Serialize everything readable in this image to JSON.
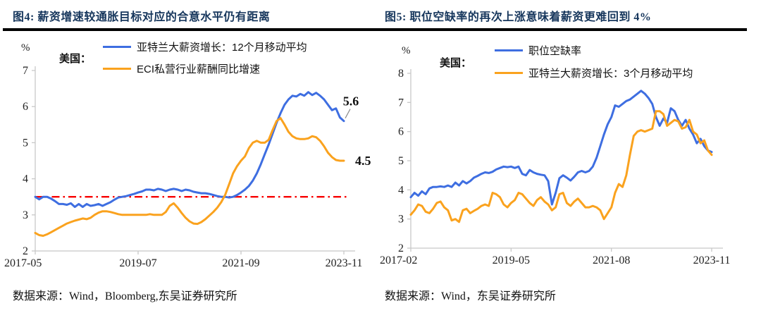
{
  "colors": {
    "blue": "#3E6EE1",
    "orange": "#FAA21E",
    "red": "#F80000",
    "title_navy": "#16365C",
    "axis_gray": "#C8C8C8",
    "tick_text": "#222222",
    "annotation_text": "#111111",
    "leader_gray": "#8A8A8A"
  },
  "charts": [
    {
      "title": "图4: 薪资增速较通胀目标对应的合意水平仍有距离",
      "source": "数据来源：Wind，Bloomberg,东吴证券研究所",
      "legend": {
        "region_label": "美国：",
        "items": [
          {
            "label": "亚特兰大薪资增长：12个月移动平均"
          },
          {
            "label": "ECI私营行业薪酬同比增速"
          }
        ]
      },
      "y_axis": {
        "unit": "%",
        "min": 2,
        "max": 7,
        "ticks": [
          7,
          6,
          5,
          4,
          3,
          2
        ]
      },
      "x_axis": {
        "ticks": [
          "2017-05",
          "2019-07",
          "2021-09",
          "2023-11"
        ],
        "fracs": [
          0,
          0.3333,
          0.6667,
          1
        ]
      },
      "ref_line": {
        "value": 3.5,
        "color": "#F80000",
        "style": "dash-dot"
      },
      "chart_data": {
        "type": "line",
        "x_range": [
          "2017-05",
          "2023-11"
        ],
        "x_interval": "monthly",
        "series": [
          {
            "name": "亚特兰大薪资增长：12个月移动平均",
            "color": "#3E6EE1",
            "values": [
              3.5,
              3.43,
              3.5,
              3.5,
              3.45,
              3.38,
              3.3,
              3.3,
              3.28,
              3.32,
              3.22,
              3.3,
              3.22,
              3.3,
              3.25,
              3.27,
              3.3,
              3.25,
              3.3,
              3.35,
              3.42,
              3.48,
              3.5,
              3.52,
              3.55,
              3.58,
              3.62,
              3.65,
              3.7,
              3.7,
              3.68,
              3.72,
              3.7,
              3.66,
              3.7,
              3.72,
              3.7,
              3.66,
              3.7,
              3.68,
              3.64,
              3.62,
              3.6,
              3.6,
              3.58,
              3.55,
              3.52,
              3.5,
              3.5,
              3.48,
              3.5,
              3.55,
              3.62,
              3.7,
              3.8,
              3.95,
              4.15,
              4.4,
              4.68,
              4.95,
              5.25,
              5.55,
              5.82,
              6.05,
              6.2,
              6.3,
              6.28,
              6.35,
              6.3,
              6.4,
              6.32,
              6.38,
              6.3,
              6.2,
              6.05,
              5.9,
              5.95,
              5.7,
              5.6
            ]
          },
          {
            "name": "ECI私营行业薪酬同比增速",
            "color": "#FAA21E",
            "values": [
              2.5,
              2.44,
              2.42,
              2.46,
              2.52,
              2.58,
              2.64,
              2.7,
              2.76,
              2.8,
              2.84,
              2.87,
              2.9,
              2.88,
              2.92,
              3.0,
              3.06,
              3.1,
              3.1,
              3.08,
              3.05,
              3.02,
              3.0,
              3.0,
              3.0,
              3.0,
              3.0,
              3.0,
              3.0,
              3.02,
              3.0,
              3.0,
              3.0,
              3.08,
              3.25,
              3.32,
              3.2,
              3.05,
              2.92,
              2.82,
              2.76,
              2.75,
              2.8,
              2.88,
              2.98,
              3.08,
              3.2,
              3.35,
              3.55,
              3.85,
              4.15,
              4.35,
              4.5,
              4.62,
              4.85,
              5.0,
              5.05,
              5.0,
              5.0,
              5.08,
              5.35,
              5.6,
              5.68,
              5.5,
              5.3,
              5.18,
              5.12,
              5.1,
              5.1,
              5.12,
              5.18,
              5.15,
              5.05,
              4.9,
              4.72,
              4.6,
              4.52,
              4.5,
              4.5
            ]
          }
        ],
        "reference_level": 3.5
      },
      "annotations": [
        {
          "series": 0,
          "text": "5.6",
          "leader": true
        },
        {
          "series": 1,
          "text": "4.5",
          "leader": false
        }
      ]
    },
    {
      "title": "图5: 职位空缺率的再次上涨意味着薪资更难回到 4%",
      "source": "数据来源：Wind，东吴证券研究所",
      "legend": {
        "region_label": "美国：",
        "items": [
          {
            "label": "职位空缺率"
          },
          {
            "label": "亚特兰大薪资增长：3个月移动平均"
          }
        ]
      },
      "y_axis": {
        "unit": "%",
        "min": 2,
        "max": 8,
        "ticks": [
          8,
          7,
          6,
          5,
          4,
          3,
          2
        ]
      },
      "x_axis": {
        "ticks": [
          "2017-02",
          "2019-05",
          "2021-08",
          "2023-11"
        ],
        "fracs": [
          0,
          0.3333,
          0.6667,
          1
        ]
      },
      "ref_line": null,
      "chart_data": {
        "type": "line",
        "x_range": [
          "2017-02",
          "2023-11"
        ],
        "x_interval": "monthly",
        "series": [
          {
            "name": "职位空缺率",
            "color": "#3E6EE1",
            "values": [
              3.75,
              3.9,
              3.8,
              3.95,
              3.85,
              4.05,
              4.1,
              4.1,
              4.12,
              4.1,
              4.15,
              4.1,
              4.25,
              4.15,
              4.3,
              4.22,
              4.3,
              4.42,
              4.48,
              4.55,
              4.6,
              4.58,
              4.62,
              4.7,
              4.75,
              4.8,
              4.78,
              4.8,
              4.75,
              4.8,
              4.55,
              4.5,
              4.68,
              4.6,
              4.55,
              4.52,
              4.5,
              4.3,
              3.5,
              3.9,
              4.4,
              4.5,
              4.42,
              4.32,
              4.45,
              4.6,
              4.65,
              4.6,
              4.65,
              4.8,
              5.1,
              5.5,
              5.9,
              6.25,
              6.5,
              6.9,
              6.85,
              6.95,
              7.05,
              7.1,
              7.2,
              7.3,
              7.4,
              7.3,
              7.15,
              6.95,
              6.5,
              6.2,
              6.45,
              6.3,
              6.8,
              6.7,
              6.4,
              6.2,
              6.4,
              6.1,
              5.9,
              5.6,
              5.75,
              5.5,
              5.35,
              5.3
            ]
          },
          {
            "name": "亚特兰大薪资增长：3个月移动平均",
            "color": "#FAA21E",
            "values": [
              3.15,
              3.3,
              3.5,
              3.45,
              3.25,
              3.2,
              3.35,
              3.55,
              3.6,
              3.4,
              3.3,
              2.95,
              3.0,
              2.9,
              3.3,
              3.35,
              3.2,
              3.28,
              3.35,
              3.45,
              3.5,
              3.45,
              3.9,
              3.85,
              3.75,
              3.5,
              3.4,
              3.55,
              3.65,
              3.9,
              3.85,
              3.7,
              3.55,
              3.45,
              3.65,
              3.75,
              3.6,
              3.5,
              3.3,
              3.4,
              3.85,
              3.9,
              3.55,
              3.45,
              3.6,
              3.7,
              3.55,
              3.4,
              3.4,
              3.45,
              3.4,
              3.3,
              3.0,
              3.2,
              3.4,
              3.9,
              4.2,
              4.1,
              4.5,
              5.2,
              5.85,
              6.0,
              6.05,
              6.0,
              6.05,
              6.1,
              6.7,
              6.7,
              6.6,
              6.2,
              6.3,
              6.4,
              6.35,
              6.1,
              6.15,
              6.4,
              6.0,
              5.9,
              5.6,
              5.7,
              5.35,
              5.2
            ]
          }
        ]
      },
      "annotations": []
    }
  ]
}
